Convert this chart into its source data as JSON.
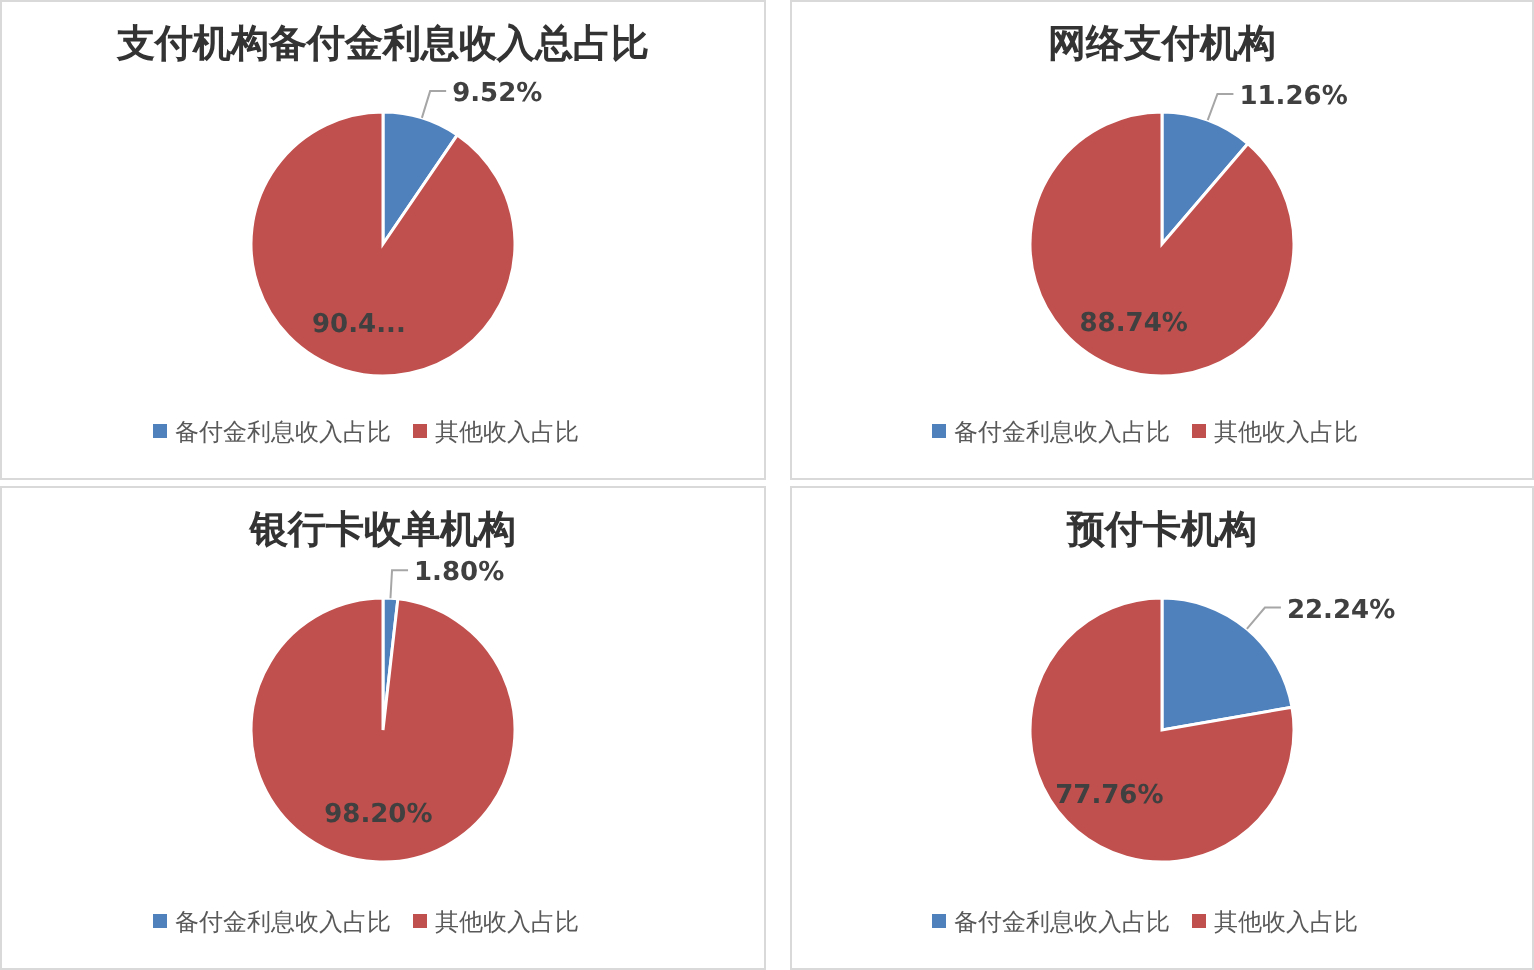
{
  "chart_data": [
    {
      "type": "pie",
      "title": "支付机构备付金利息收入总占比",
      "categories": [
        "备付金利息收入占比",
        "其他收入占比"
      ],
      "values": [
        9.52,
        90.48
      ],
      "colors": [
        "#4f81bd",
        "#c0504d"
      ],
      "value_labels": [
        "9.52%",
        "90.4..."
      ],
      "legend": "bottom"
    },
    {
      "type": "pie",
      "title": "网络支付机构",
      "categories": [
        "备付金利息收入占比",
        "其他收入占比"
      ],
      "values": [
        11.26,
        88.74
      ],
      "colors": [
        "#4f81bd",
        "#c0504d"
      ],
      "value_labels": [
        "11.26%",
        "88.74%"
      ],
      "legend": "bottom"
    },
    {
      "type": "pie",
      "title": "银行卡收单机构",
      "categories": [
        "备付金利息收入占比",
        "其他收入占比"
      ],
      "values": [
        1.8,
        98.2
      ],
      "colors": [
        "#4f81bd",
        "#c0504d"
      ],
      "value_labels": [
        "1.80%",
        "98.20%"
      ],
      "legend": "bottom"
    },
    {
      "type": "pie",
      "title": "预付卡机构",
      "categories": [
        "备付金利息收入占比",
        "其他收入占比"
      ],
      "values": [
        22.24,
        77.76
      ],
      "colors": [
        "#4f81bd",
        "#c0504d"
      ],
      "value_labels": [
        "22.24%",
        "77.76%"
      ],
      "legend": "bottom"
    }
  ]
}
